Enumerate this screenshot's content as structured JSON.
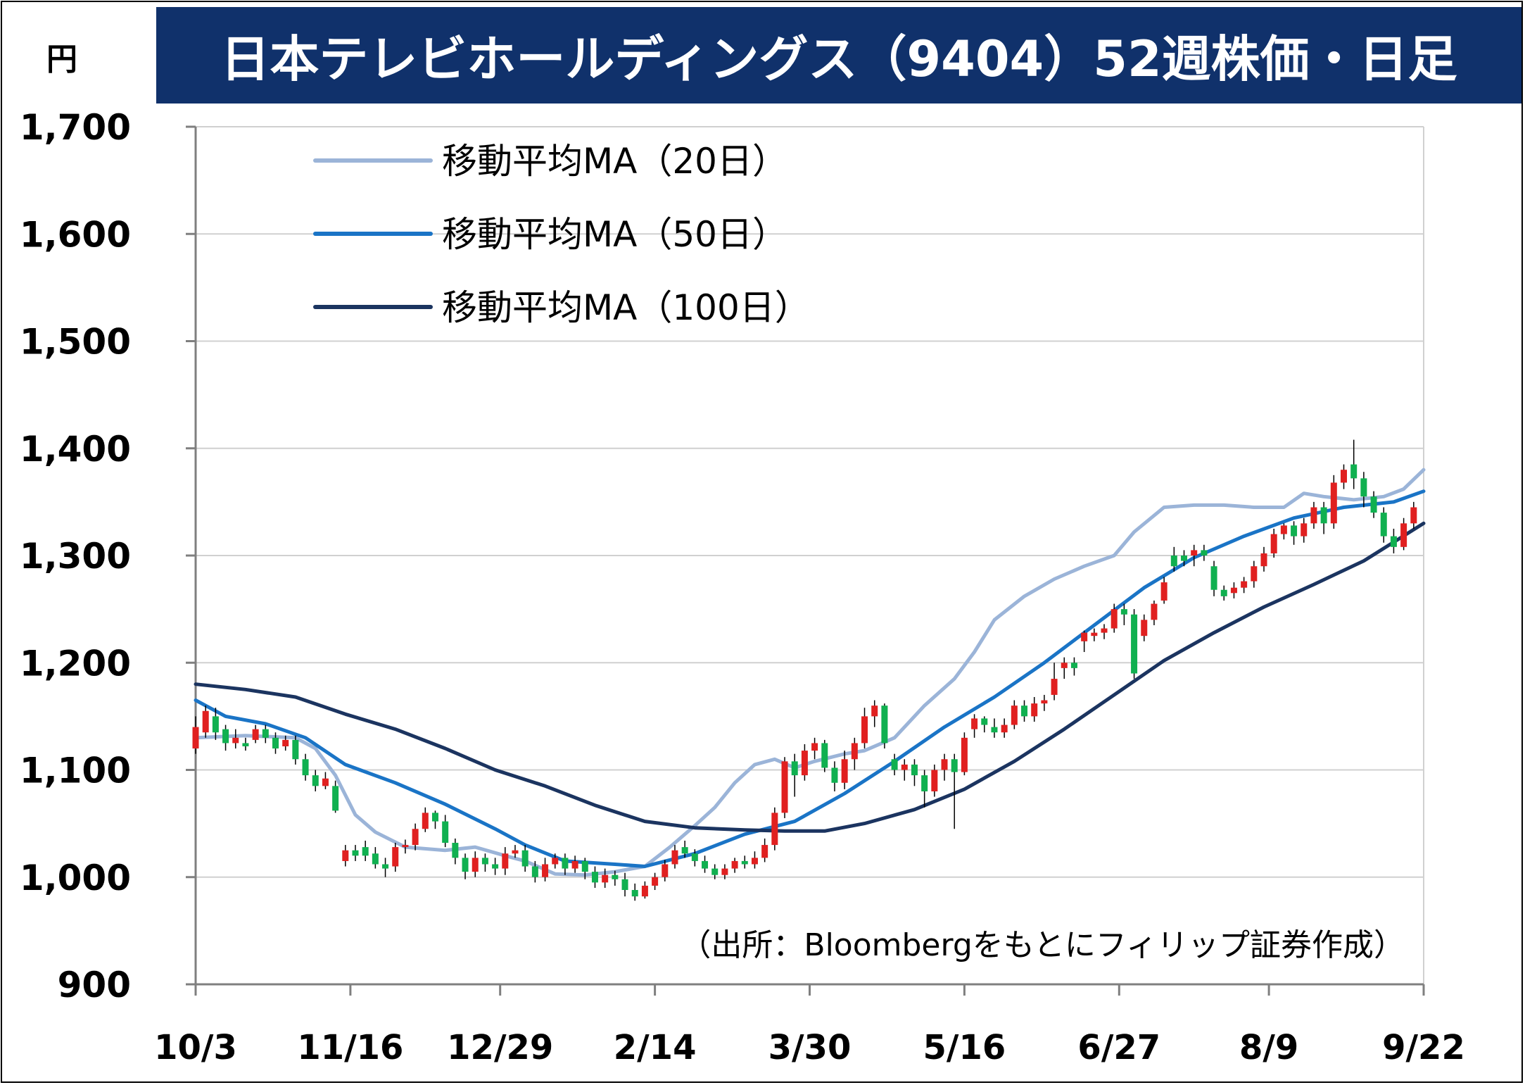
{
  "title": "日本テレビホールディングス（9404）52週株価・日足",
  "unit": "円",
  "source_note": "（出所：Bloombergをもとにフィリップ証券作成）",
  "colors": {
    "title_bg": "#10316b",
    "title_text": "#ffffff",
    "candle_up": "#e02020",
    "candle_down": "#10b050",
    "ma20": "#9bb4d8",
    "ma50": "#1a74c6",
    "ma100": "#1b3460",
    "grid": "#d0d0d0"
  },
  "chart_data": {
    "type": "candlestick",
    "ylim": [
      900,
      1700
    ],
    "yticks": [
      900,
      1000,
      1100,
      1200,
      1300,
      1400,
      1500,
      1600,
      1700
    ],
    "ytick_labels": [
      "900",
      "1,000",
      "1,100",
      "1,200",
      "1,300",
      "1,400",
      "1,500",
      "1,600",
      "1,700"
    ],
    "grid": true,
    "legend_position": "top-left",
    "n_days": 246,
    "xticks": [
      {
        "index": 0,
        "label": "10/3"
      },
      {
        "index": 31,
        "label": "11/16"
      },
      {
        "index": 61,
        "label": "12/29"
      },
      {
        "index": 92,
        "label": "2/14"
      },
      {
        "index": 123,
        "label": "3/30"
      },
      {
        "index": 154,
        "label": "5/16"
      },
      {
        "index": 185,
        "label": "6/27"
      },
      {
        "index": 215,
        "label": "8/9"
      },
      {
        "index": 246,
        "label": "9/22"
      }
    ],
    "series": [
      {
        "name": "移動平均MA（20日）",
        "color": "#9bb4d8",
        "points": [
          [
            0,
            1130
          ],
          [
            10,
            1132
          ],
          [
            20,
            1130
          ],
          [
            24,
            1120
          ],
          [
            28,
            1095
          ],
          [
            32,
            1058
          ],
          [
            36,
            1042
          ],
          [
            42,
            1028
          ],
          [
            50,
            1025
          ],
          [
            56,
            1028
          ],
          [
            62,
            1020
          ],
          [
            66,
            1015
          ],
          [
            72,
            1003
          ],
          [
            78,
            1002
          ],
          [
            84,
            1005
          ],
          [
            90,
            1010
          ],
          [
            95,
            1028
          ],
          [
            100,
            1048
          ],
          [
            104,
            1065
          ],
          [
            108,
            1088
          ],
          [
            112,
            1105
          ],
          [
            116,
            1110
          ],
          [
            120,
            1102
          ],
          [
            124,
            1108
          ],
          [
            130,
            1115
          ],
          [
            134,
            1118
          ],
          [
            140,
            1130
          ],
          [
            146,
            1160
          ],
          [
            152,
            1185
          ],
          [
            156,
            1210
          ],
          [
            160,
            1240
          ],
          [
            166,
            1262
          ],
          [
            172,
            1278
          ],
          [
            178,
            1290
          ],
          [
            184,
            1300
          ],
          [
            188,
            1322
          ],
          [
            194,
            1345
          ],
          [
            200,
            1347
          ],
          [
            206,
            1347
          ],
          [
            212,
            1345
          ],
          [
            218,
            1345
          ],
          [
            222,
            1358
          ],
          [
            226,
            1355
          ],
          [
            232,
            1352
          ],
          [
            238,
            1355
          ],
          [
            242,
            1362
          ],
          [
            246,
            1380
          ]
        ]
      },
      {
        "name": "移動平均MA（50日）",
        "color": "#1a74c6",
        "points": [
          [
            0,
            1165
          ],
          [
            6,
            1150
          ],
          [
            14,
            1143
          ],
          [
            22,
            1130
          ],
          [
            30,
            1105
          ],
          [
            40,
            1088
          ],
          [
            50,
            1068
          ],
          [
            60,
            1045
          ],
          [
            66,
            1030
          ],
          [
            74,
            1015
          ],
          [
            84,
            1012
          ],
          [
            90,
            1010
          ],
          [
            100,
            1022
          ],
          [
            110,
            1040
          ],
          [
            120,
            1052
          ],
          [
            130,
            1078
          ],
          [
            140,
            1108
          ],
          [
            150,
            1140
          ],
          [
            160,
            1168
          ],
          [
            170,
            1200
          ],
          [
            180,
            1235
          ],
          [
            190,
            1270
          ],
          [
            200,
            1298
          ],
          [
            210,
            1318
          ],
          [
            220,
            1335
          ],
          [
            230,
            1345
          ],
          [
            240,
            1350
          ],
          [
            246,
            1360
          ]
        ]
      },
      {
        "name": "移動平均MA（100日）",
        "color": "#1b3460",
        "points": [
          [
            0,
            1180
          ],
          [
            10,
            1175
          ],
          [
            20,
            1168
          ],
          [
            30,
            1152
          ],
          [
            40,
            1138
          ],
          [
            50,
            1120
          ],
          [
            60,
            1100
          ],
          [
            70,
            1085
          ],
          [
            80,
            1067
          ],
          [
            90,
            1052
          ],
          [
            100,
            1046
          ],
          [
            110,
            1044
          ],
          [
            118,
            1043
          ],
          [
            126,
            1043
          ],
          [
            134,
            1050
          ],
          [
            144,
            1063
          ],
          [
            154,
            1082
          ],
          [
            164,
            1108
          ],
          [
            174,
            1138
          ],
          [
            184,
            1170
          ],
          [
            194,
            1202
          ],
          [
            204,
            1228
          ],
          [
            214,
            1252
          ],
          [
            224,
            1273
          ],
          [
            234,
            1295
          ],
          [
            246,
            1330
          ]
        ]
      }
    ],
    "candles": [
      [
        0,
        1120,
        1140,
        1115,
        1150
      ],
      [
        2,
        1135,
        1155,
        1130,
        1160
      ],
      [
        4,
        1150,
        1135,
        1128,
        1158
      ],
      [
        6,
        1138,
        1125,
        1118,
        1142
      ],
      [
        8,
        1125,
        1130,
        1120,
        1138
      ],
      [
        10,
        1125,
        1122,
        1118,
        1130
      ],
      [
        12,
        1128,
        1138,
        1125,
        1142
      ],
      [
        14,
        1138,
        1130,
        1125,
        1142
      ],
      [
        16,
        1130,
        1120,
        1115,
        1135
      ],
      [
        18,
        1122,
        1128,
        1118,
        1132
      ],
      [
        20,
        1128,
        1110,
        1105,
        1132
      ],
      [
        22,
        1110,
        1095,
        1090,
        1115
      ],
      [
        24,
        1095,
        1085,
        1080,
        1100
      ],
      [
        26,
        1085,
        1092,
        1082,
        1098
      ],
      [
        28,
        1085,
        1062,
        1060,
        1090
      ],
      [
        30,
        1015,
        1025,
        1010,
        1030
      ],
      [
        32,
        1025,
        1020,
        1015,
        1030
      ],
      [
        34,
        1028,
        1020,
        1015,
        1034
      ],
      [
        36,
        1022,
        1012,
        1008,
        1028
      ],
      [
        38,
        1012,
        1008,
        1000,
        1018
      ],
      [
        40,
        1010,
        1028,
        1005,
        1032
      ],
      [
        42,
        1028,
        1030,
        1022,
        1035
      ],
      [
        44,
        1030,
        1045,
        1025,
        1050
      ],
      [
        46,
        1045,
        1060,
        1042,
        1065
      ],
      [
        48,
        1060,
        1052,
        1045,
        1062
      ],
      [
        50,
        1052,
        1032,
        1028,
        1058
      ],
      [
        52,
        1032,
        1018,
        1012,
        1036
      ],
      [
        54,
        1018,
        1005,
        998,
        1022
      ],
      [
        56,
        1005,
        1018,
        1000,
        1024
      ],
      [
        58,
        1018,
        1012,
        1005,
        1022
      ],
      [
        60,
        1012,
        1008,
        1002,
        1018
      ],
      [
        62,
        1008,
        1022,
        1002,
        1028
      ],
      [
        64,
        1022,
        1025,
        1018,
        1030
      ],
      [
        66,
        1025,
        1010,
        1005,
        1030
      ],
      [
        68,
        1010,
        1000,
        995,
        1015
      ],
      [
        70,
        1000,
        1012,
        996,
        1018
      ],
      [
        72,
        1012,
        1018,
        1008,
        1022
      ],
      [
        74,
        1018,
        1008,
        1002,
        1022
      ],
      [
        76,
        1008,
        1015,
        1004,
        1020
      ],
      [
        78,
        1015,
        1005,
        998,
        1018
      ],
      [
        80,
        1005,
        995,
        990,
        1010
      ],
      [
        82,
        995,
        1002,
        990,
        1008
      ],
      [
        84,
        1002,
        998,
        992,
        1006
      ],
      [
        86,
        998,
        988,
        982,
        1004
      ],
      [
        88,
        988,
        982,
        978,
        994
      ],
      [
        90,
        982,
        992,
        980,
        996
      ],
      [
        92,
        992,
        1000,
        988,
        1004
      ],
      [
        94,
        1000,
        1012,
        996,
        1016
      ],
      [
        96,
        1012,
        1025,
        1008,
        1030
      ],
      [
        98,
        1028,
        1022,
        1018,
        1034
      ],
      [
        100,
        1022,
        1015,
        1010,
        1026
      ],
      [
        102,
        1015,
        1008,
        1004,
        1020
      ],
      [
        104,
        1008,
        1002,
        998,
        1012
      ],
      [
        106,
        1002,
        1008,
        998,
        1012
      ],
      [
        108,
        1008,
        1015,
        1004,
        1018
      ],
      [
        110,
        1015,
        1012,
        1008,
        1020
      ],
      [
        112,
        1012,
        1018,
        1008,
        1024
      ],
      [
        114,
        1018,
        1030,
        1014,
        1036
      ],
      [
        116,
        1030,
        1060,
        1025,
        1065
      ],
      [
        118,
        1060,
        1108,
        1055,
        1112
      ],
      [
        120,
        1108,
        1095,
        1075,
        1115
      ],
      [
        122,
        1095,
        1118,
        1090,
        1124
      ],
      [
        124,
        1118,
        1125,
        1110,
        1130
      ],
      [
        126,
        1125,
        1102,
        1098,
        1128
      ],
      [
        128,
        1102,
        1088,
        1080,
        1108
      ],
      [
        130,
        1088,
        1110,
        1082,
        1118
      ],
      [
        132,
        1110,
        1125,
        1100,
        1130
      ],
      [
        134,
        1125,
        1150,
        1120,
        1158
      ],
      [
        136,
        1150,
        1160,
        1140,
        1165
      ],
      [
        138,
        1160,
        1125,
        1120,
        1162
      ],
      [
        140,
        1110,
        1100,
        1095,
        1115
      ],
      [
        142,
        1100,
        1105,
        1090,
        1110
      ],
      [
        144,
        1105,
        1095,
        1085,
        1110
      ],
      [
        146,
        1095,
        1080,
        1065,
        1100
      ],
      [
        148,
        1080,
        1100,
        1075,
        1105
      ],
      [
        150,
        1100,
        1110,
        1090,
        1115
      ],
      [
        152,
        1110,
        1098,
        1045,
        1115
      ],
      [
        154,
        1098,
        1130,
        1095,
        1135
      ],
      [
        156,
        1138,
        1148,
        1130,
        1152
      ],
      [
        158,
        1148,
        1142,
        1135,
        1150
      ],
      [
        160,
        1140,
        1135,
        1130,
        1148
      ],
      [
        162,
        1135,
        1142,
        1130,
        1148
      ],
      [
        164,
        1142,
        1160,
        1138,
        1165
      ],
      [
        166,
        1160,
        1150,
        1145,
        1165
      ],
      [
        168,
        1150,
        1162,
        1145,
        1168
      ],
      [
        170,
        1162,
        1165,
        1155,
        1170
      ],
      [
        172,
        1170,
        1185,
        1165,
        1200
      ],
      [
        174,
        1195,
        1200,
        1185,
        1205
      ],
      [
        176,
        1200,
        1195,
        1188,
        1205
      ],
      [
        178,
        1220,
        1228,
        1210,
        1230
      ],
      [
        180,
        1225,
        1228,
        1220,
        1232
      ],
      [
        182,
        1228,
        1232,
        1222,
        1236
      ],
      [
        184,
        1232,
        1250,
        1228,
        1255
      ],
      [
        186,
        1250,
        1245,
        1235,
        1255
      ],
      [
        188,
        1245,
        1190,
        1185,
        1250
      ],
      [
        190,
        1225,
        1240,
        1220,
        1245
      ],
      [
        192,
        1240,
        1255,
        1235,
        1258
      ],
      [
        194,
        1258,
        1275,
        1255,
        1280
      ],
      [
        196,
        1300,
        1290,
        1285,
        1308
      ],
      [
        198,
        1300,
        1295,
        1290,
        1305
      ],
      [
        200,
        1300,
        1305,
        1290,
        1310
      ],
      [
        202,
        1305,
        1300,
        1295,
        1310
      ],
      [
        204,
        1290,
        1268,
        1262,
        1295
      ],
      [
        206,
        1268,
        1262,
        1258,
        1272
      ],
      [
        208,
        1265,
        1270,
        1260,
        1275
      ],
      [
        210,
        1270,
        1276,
        1265,
        1280
      ],
      [
        212,
        1276,
        1290,
        1270,
        1295
      ],
      [
        214,
        1290,
        1302,
        1285,
        1308
      ],
      [
        216,
        1302,
        1320,
        1298,
        1325
      ],
      [
        218,
        1320,
        1328,
        1315,
        1330
      ],
      [
        220,
        1328,
        1318,
        1310,
        1332
      ],
      [
        222,
        1318,
        1330,
        1312,
        1335
      ],
      [
        224,
        1330,
        1345,
        1325,
        1350
      ],
      [
        226,
        1345,
        1330,
        1320,
        1350
      ],
      [
        228,
        1330,
        1368,
        1325,
        1375
      ],
      [
        230,
        1368,
        1380,
        1362,
        1385
      ],
      [
        232,
        1385,
        1372,
        1362,
        1408
      ],
      [
        234,
        1372,
        1355,
        1345,
        1378
      ],
      [
        236,
        1355,
        1340,
        1335,
        1360
      ],
      [
        238,
        1340,
        1318,
        1312,
        1345
      ],
      [
        240,
        1318,
        1308,
        1302,
        1325
      ],
      [
        242,
        1308,
        1330,
        1305,
        1335
      ],
      [
        244,
        1330,
        1345,
        1325,
        1350
      ]
    ]
  },
  "legend": [
    {
      "label": "移動平均MA（20日）",
      "color": "#9bb4d8"
    },
    {
      "label": "移動平均MA（50日）",
      "color": "#1a74c6"
    },
    {
      "label": "移動平均MA（100日）",
      "color": "#1b3460"
    }
  ]
}
